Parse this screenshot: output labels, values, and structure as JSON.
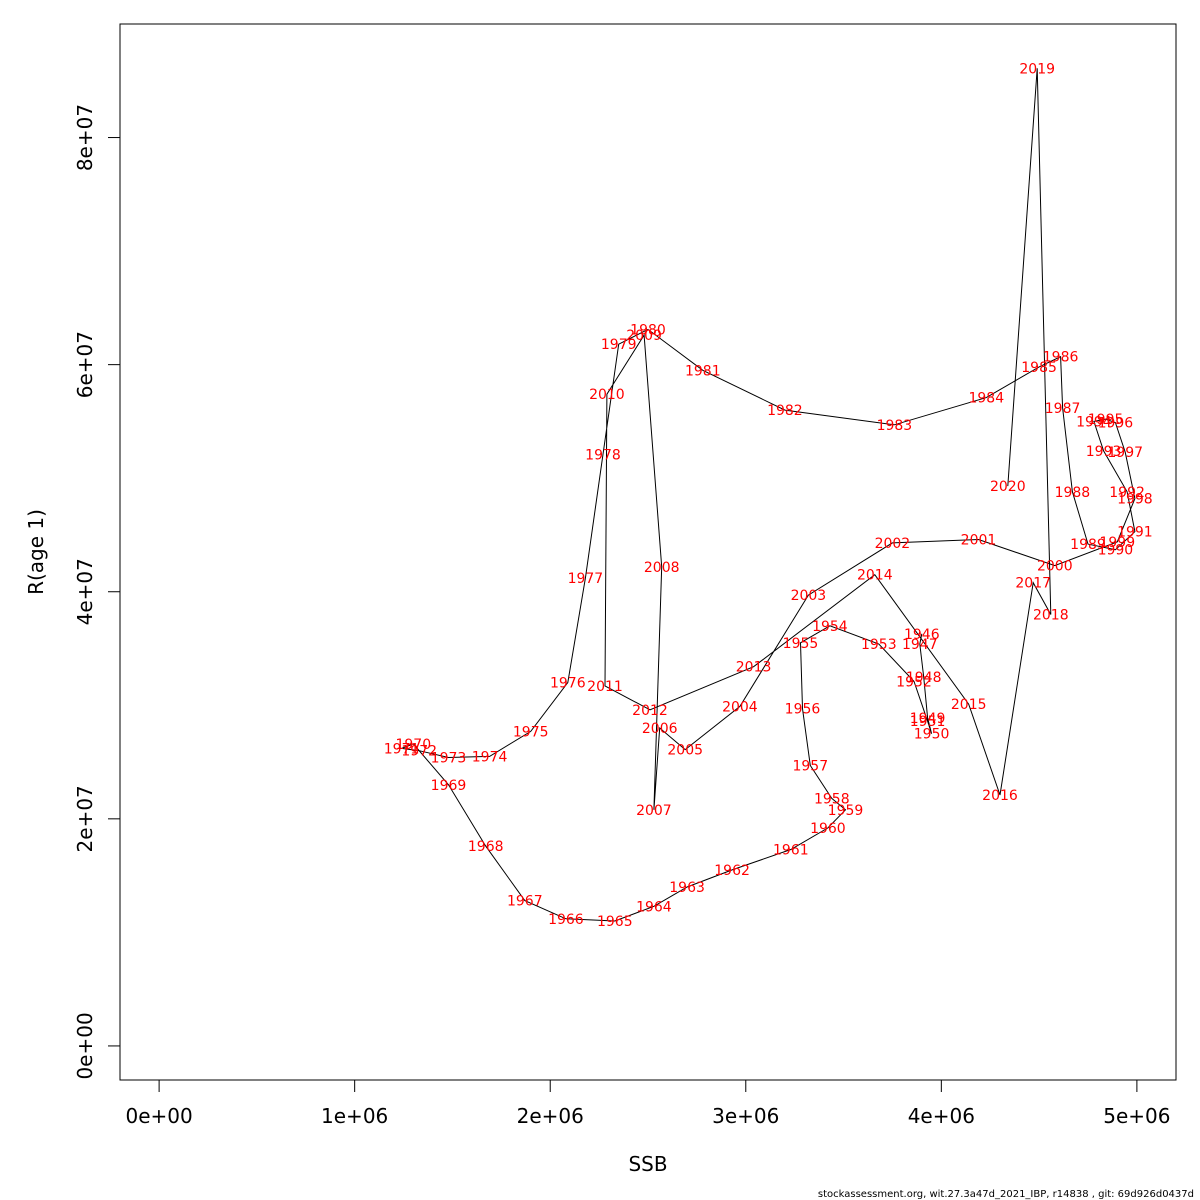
{
  "chart_data": {
    "type": "line",
    "title": "",
    "xlabel": "SSB",
    "ylabel": "R(age 1)",
    "xlim": [
      -200000,
      5200000
    ],
    "ylim": [
      -3000000,
      90000000
    ],
    "x_ticks": [
      0,
      1000000,
      2000000,
      3000000,
      4000000,
      5000000
    ],
    "x_tick_labels": [
      "0e+00",
      "1e+06",
      "2e+06",
      "3e+06",
      "4e+06",
      "5e+06"
    ],
    "y_ticks": [
      0,
      20000000,
      40000000,
      60000000,
      80000000
    ],
    "y_tick_labels": [
      "0e+00",
      "2e+07",
      "4e+07",
      "6e+07",
      "8e+07"
    ],
    "line_color": "#000000",
    "label_color": "#ff0000",
    "points": [
      {
        "year": "1946",
        "ssb": 3900000,
        "rec": 36300000
      },
      {
        "year": "1947",
        "ssb": 3890000,
        "rec": 35400000
      },
      {
        "year": "1948",
        "ssb": 3910000,
        "rec": 32500000
      },
      {
        "year": "1949",
        "ssb": 3930000,
        "rec": 28900000
      },
      {
        "year": "1950",
        "ssb": 3950000,
        "rec": 27500000
      },
      {
        "year": "1951",
        "ssb": 3930000,
        "rec": 28600000
      },
      {
        "year": "1952",
        "ssb": 3860000,
        "rec": 32100000
      },
      {
        "year": "1953",
        "ssb": 3680000,
        "rec": 35400000
      },
      {
        "year": "1954",
        "ssb": 3430000,
        "rec": 37000000
      },
      {
        "year": "1955",
        "ssb": 3280000,
        "rec": 35500000
      },
      {
        "year": "1956",
        "ssb": 3290000,
        "rec": 29700000
      },
      {
        "year": "1957",
        "ssb": 3330000,
        "rec": 24700000
      },
      {
        "year": "1958",
        "ssb": 3440000,
        "rec": 21800000
      },
      {
        "year": "1959",
        "ssb": 3510000,
        "rec": 20800000
      },
      {
        "year": "1960",
        "ssb": 3420000,
        "rec": 19200000
      },
      {
        "year": "1961",
        "ssb": 3230000,
        "rec": 17300000
      },
      {
        "year": "1962",
        "ssb": 2930000,
        "rec": 15500000
      },
      {
        "year": "1963",
        "ssb": 2700000,
        "rec": 14000000
      },
      {
        "year": "1964",
        "ssb": 2530000,
        "rec": 12300000
      },
      {
        "year": "1965",
        "ssb": 2330000,
        "rec": 11000000
      },
      {
        "year": "1966",
        "ssb": 2080000,
        "rec": 11200000
      },
      {
        "year": "1967",
        "ssb": 1870000,
        "rec": 12800000
      },
      {
        "year": "1968",
        "ssb": 1670000,
        "rec": 17600000
      },
      {
        "year": "1969",
        "ssb": 1480000,
        "rec": 23000000
      },
      {
        "year": "1970",
        "ssb": 1300000,
        "rec": 26600000
      },
      {
        "year": "1971",
        "ssb": 1240000,
        "rec": 26200000
      },
      {
        "year": "1972",
        "ssb": 1330000,
        "rec": 26000000
      },
      {
        "year": "1973",
        "ssb": 1480000,
        "rec": 25400000
      },
      {
        "year": "1974",
        "ssb": 1690000,
        "rec": 25500000
      },
      {
        "year": "1975",
        "ssb": 1900000,
        "rec": 27700000
      },
      {
        "year": "1976",
        "ssb": 2090000,
        "rec": 32000000
      },
      {
        "year": "1977",
        "ssb": 2180000,
        "rec": 41200000
      },
      {
        "year": "1978",
        "ssb": 2270000,
        "rec": 52100000
      },
      {
        "year": "1979",
        "ssb": 2350000,
        "rec": 61800000
      },
      {
        "year": "1980",
        "ssb": 2500000,
        "rec": 63100000
      },
      {
        "year": "1981",
        "ssb": 2780000,
        "rec": 59500000
      },
      {
        "year": "1982",
        "ssb": 3200000,
        "rec": 56000000
      },
      {
        "year": "1983",
        "ssb": 3760000,
        "rec": 54700000
      },
      {
        "year": "1984",
        "ssb": 4230000,
        "rec": 57100000
      },
      {
        "year": "1985",
        "ssb": 4500000,
        "rec": 59800000
      },
      {
        "year": "1986",
        "ssb": 4610000,
        "rec": 60700000
      },
      {
        "year": "1987",
        "ssb": 4620000,
        "rec": 56200000
      },
      {
        "year": "1988",
        "ssb": 4670000,
        "rec": 48800000
      },
      {
        "year": "1989",
        "ssb": 4750000,
        "rec": 44200000
      },
      {
        "year": "1990",
        "ssb": 4890000,
        "rec": 43700000
      },
      {
        "year": "1991",
        "ssb": 4990000,
        "rec": 45300000
      },
      {
        "year": "1992",
        "ssb": 4950000,
        "rec": 48800000
      },
      {
        "year": "1993",
        "ssb": 4830000,
        "rec": 52400000
      },
      {
        "year": "1994",
        "ssb": 4780000,
        "rec": 55000000
      },
      {
        "year": "1995",
        "ssb": 4840000,
        "rec": 55200000
      },
      {
        "year": "1996",
        "ssb": 4890000,
        "rec": 54900000
      },
      {
        "year": "1997",
        "ssb": 4940000,
        "rec": 52300000
      },
      {
        "year": "1998",
        "ssb": 4990000,
        "rec": 48200000
      },
      {
        "year": "1999",
        "ssb": 4900000,
        "rec": 44400000
      },
      {
        "year": "2000",
        "ssb": 4580000,
        "rec": 42300000
      },
      {
        "year": "2001",
        "ssb": 4190000,
        "rec": 44600000
      },
      {
        "year": "2002",
        "ssb": 3750000,
        "rec": 44300000
      },
      {
        "year": "2003",
        "ssb": 3320000,
        "rec": 39700000
      },
      {
        "year": "2004",
        "ssb": 2970000,
        "rec": 29900000
      },
      {
        "year": "2005",
        "ssb": 2690000,
        "rec": 26100000
      },
      {
        "year": "2006",
        "ssb": 2560000,
        "rec": 28000000
      },
      {
        "year": "2007",
        "ssb": 2530000,
        "rec": 20800000
      },
      {
        "year": "2008",
        "ssb": 2570000,
        "rec": 42200000
      },
      {
        "year": "2009",
        "ssb": 2480000,
        "rec": 62600000
      },
      {
        "year": "2010",
        "ssb": 2290000,
        "rec": 57400000
      },
      {
        "year": "2011",
        "ssb": 2280000,
        "rec": 31700000
      },
      {
        "year": "2012",
        "ssb": 2510000,
        "rec": 29600000
      },
      {
        "year": "2013",
        "ssb": 3040000,
        "rec": 33400000
      },
      {
        "year": "2014",
        "ssb": 3660000,
        "rec": 41500000
      },
      {
        "year": "2015",
        "ssb": 4140000,
        "rec": 30100000
      },
      {
        "year": "2016",
        "ssb": 4300000,
        "rec": 22100000
      },
      {
        "year": "2017",
        "ssb": 4470000,
        "rec": 40800000
      },
      {
        "year": "2018",
        "ssb": 4560000,
        "rec": 38000000
      },
      {
        "year": "2019",
        "ssb": 4490000,
        "rec": 86100000
      },
      {
        "year": "2020",
        "ssb": 4340000,
        "rec": 49300000
      }
    ]
  },
  "footer": {
    "text": "stockassessment.org, wit.27.3a47d_2021_IBP, r14838 , git: 69d926d0437d"
  }
}
